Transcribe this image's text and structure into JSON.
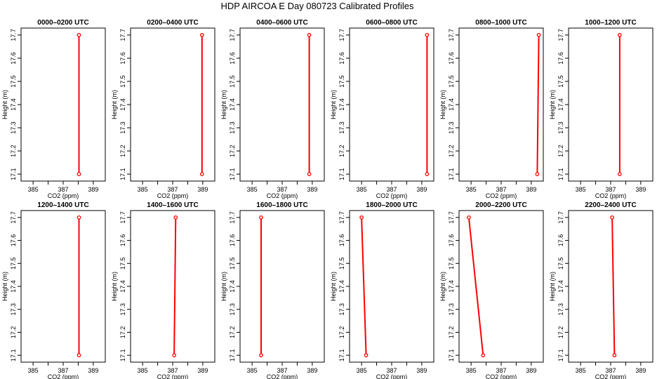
{
  "title": "HDP AIRCOA E  Day 080723  Calibrated Profiles",
  "chart_data": [
    {
      "type": "line",
      "title": "0000–0200 UTC",
      "xlabel": "CO2 (ppm)",
      "ylabel": "Height (m)",
      "xlim": [
        384.2,
        389.8
      ],
      "ylim": [
        17.07,
        17.73
      ],
      "xticks": [
        385,
        386,
        387,
        388,
        389
      ],
      "xtick_labels": [
        "385",
        "387",
        "389"
      ],
      "yticks": [
        17.1,
        17.2,
        17.3,
        17.4,
        17.5,
        17.6,
        17.7
      ],
      "ytick_labels": [
        "17.1",
        "17.2",
        "17.3",
        "17.4",
        "17.5",
        "17.6",
        "17.7"
      ],
      "series": [
        {
          "color": "#ff0000",
          "x": [
            388.05,
            388.05
          ],
          "y": [
            17.1,
            17.7
          ]
        }
      ]
    },
    {
      "type": "line",
      "title": "0200–0400 UTC",
      "xlabel": "CO2 (ppm)",
      "ylabel": "Height (m)",
      "xlim": [
        384.2,
        389.8
      ],
      "ylim": [
        17.07,
        17.73
      ],
      "xticks": [
        385,
        386,
        387,
        388,
        389
      ],
      "xtick_labels": [
        "385",
        "387",
        "389"
      ],
      "yticks": [
        17.1,
        17.2,
        17.3,
        17.4,
        17.5,
        17.6,
        17.7
      ],
      "ytick_labels": [
        "17.1",
        "17.2",
        "17.3",
        "17.4",
        "17.5",
        "17.6",
        "17.7"
      ],
      "series": [
        {
          "color": "#ff0000",
          "x": [
            388.95,
            388.95
          ],
          "y": [
            17.1,
            17.7
          ]
        }
      ]
    },
    {
      "type": "line",
      "title": "0400–0600 UTC",
      "xlabel": "CO2 (ppm)",
      "ylabel": "Height (m)",
      "xlim": [
        384.2,
        389.8
      ],
      "ylim": [
        17.07,
        17.73
      ],
      "xticks": [
        385,
        386,
        387,
        388,
        389
      ],
      "xtick_labels": [
        "385",
        "387",
        "389"
      ],
      "yticks": [
        17.1,
        17.2,
        17.3,
        17.4,
        17.5,
        17.6,
        17.7
      ],
      "ytick_labels": [
        "17.1",
        "17.2",
        "17.3",
        "17.4",
        "17.5",
        "17.6",
        "17.7"
      ],
      "series": [
        {
          "color": "#ff0000",
          "x": [
            388.8,
            388.8
          ],
          "y": [
            17.1,
            17.7
          ]
        }
      ]
    },
    {
      "type": "line",
      "title": "0600–0800 UTC",
      "xlabel": "CO2 (ppm)",
      "ylabel": "Height (m)",
      "xlim": [
        384.2,
        389.8
      ],
      "ylim": [
        17.07,
        17.73
      ],
      "xticks": [
        385,
        386,
        387,
        388,
        389
      ],
      "xtick_labels": [
        "385",
        "387",
        "389"
      ],
      "yticks": [
        17.1,
        17.2,
        17.3,
        17.4,
        17.5,
        17.6,
        17.7
      ],
      "ytick_labels": [
        "17.1",
        "17.2",
        "17.3",
        "17.4",
        "17.5",
        "17.6",
        "17.7"
      ],
      "series": [
        {
          "color": "#ff0000",
          "x": [
            389.35,
            389.35
          ],
          "y": [
            17.1,
            17.7
          ]
        }
      ]
    },
    {
      "type": "line",
      "title": "0800–1000 UTC",
      "xlabel": "CO2 (ppm)",
      "ylabel": "Height (m)",
      "xlim": [
        384.2,
        389.8
      ],
      "ylim": [
        17.07,
        17.73
      ],
      "xticks": [
        385,
        386,
        387,
        388,
        389
      ],
      "xtick_labels": [
        "385",
        "387",
        "389"
      ],
      "yticks": [
        17.1,
        17.2,
        17.3,
        17.4,
        17.5,
        17.6,
        17.7
      ],
      "ytick_labels": [
        "17.1",
        "17.2",
        "17.3",
        "17.4",
        "17.5",
        "17.6",
        "17.7"
      ],
      "series": [
        {
          "color": "#ff0000",
          "x": [
            389.4,
            389.5
          ],
          "y": [
            17.1,
            17.7
          ]
        }
      ]
    },
    {
      "type": "line",
      "title": "1000–1200 UTC",
      "xlabel": "CO2 (ppm)",
      "ylabel": "Height (m)",
      "xlim": [
        384.2,
        389.8
      ],
      "ylim": [
        17.07,
        17.73
      ],
      "xticks": [
        385,
        386,
        387,
        388,
        389
      ],
      "xtick_labels": [
        "385",
        "387",
        "389"
      ],
      "yticks": [
        17.1,
        17.2,
        17.3,
        17.4,
        17.5,
        17.6,
        17.7
      ],
      "ytick_labels": [
        "17.1",
        "17.2",
        "17.3",
        "17.4",
        "17.5",
        "17.6",
        "17.7"
      ],
      "series": [
        {
          "color": "#ff0000",
          "x": [
            387.6,
            387.6
          ],
          "y": [
            17.1,
            17.7
          ]
        }
      ]
    },
    {
      "type": "line",
      "title": "1200–1400 UTC",
      "xlabel": "CO2 (ppm)",
      "ylabel": "Height (m)",
      "xlim": [
        384.2,
        389.8
      ],
      "ylim": [
        17.07,
        17.73
      ],
      "xticks": [
        385,
        386,
        387,
        388,
        389
      ],
      "xtick_labels": [
        "385",
        "387",
        "389"
      ],
      "yticks": [
        17.1,
        17.2,
        17.3,
        17.4,
        17.5,
        17.6,
        17.7
      ],
      "ytick_labels": [
        "17.1",
        "17.2",
        "17.3",
        "17.4",
        "17.5",
        "17.6",
        "17.7"
      ],
      "series": [
        {
          "color": "#ff0000",
          "x": [
            388.05,
            388.05
          ],
          "y": [
            17.1,
            17.7
          ]
        }
      ]
    },
    {
      "type": "line",
      "title": "1400–1600 UTC",
      "xlabel": "CO2 (ppm)",
      "ylabel": "Height (m)",
      "xlim": [
        384.2,
        389.8
      ],
      "ylim": [
        17.07,
        17.73
      ],
      "xticks": [
        385,
        386,
        387,
        388,
        389
      ],
      "xtick_labels": [
        "385",
        "387",
        "389"
      ],
      "yticks": [
        17.1,
        17.2,
        17.3,
        17.4,
        17.5,
        17.6,
        17.7
      ],
      "ytick_labels": [
        "17.1",
        "17.2",
        "17.3",
        "17.4",
        "17.5",
        "17.6",
        "17.7"
      ],
      "series": [
        {
          "color": "#ff0000",
          "x": [
            387.1,
            387.2
          ],
          "y": [
            17.1,
            17.7
          ]
        }
      ]
    },
    {
      "type": "line",
      "title": "1600–1800 UTC",
      "xlabel": "CO2 (ppm)",
      "ylabel": "Height (m)",
      "xlim": [
        384.2,
        389.8
      ],
      "ylim": [
        17.07,
        17.73
      ],
      "xticks": [
        385,
        386,
        387,
        388,
        389
      ],
      "xtick_labels": [
        "385",
        "387",
        "389"
      ],
      "yticks": [
        17.1,
        17.2,
        17.3,
        17.4,
        17.5,
        17.6,
        17.7
      ],
      "ytick_labels": [
        "17.1",
        "17.2",
        "17.3",
        "17.4",
        "17.5",
        "17.6",
        "17.7"
      ],
      "series": [
        {
          "color": "#ff0000",
          "x": [
            385.6,
            385.6
          ],
          "y": [
            17.1,
            17.7
          ]
        }
      ]
    },
    {
      "type": "line",
      "title": "1800–2000 UTC",
      "xlabel": "CO2 (ppm)",
      "ylabel": "Height (m)",
      "xlim": [
        384.2,
        389.8
      ],
      "ylim": [
        17.07,
        17.73
      ],
      "xticks": [
        385,
        386,
        387,
        388,
        389
      ],
      "xtick_labels": [
        "385",
        "387",
        "389"
      ],
      "yticks": [
        17.1,
        17.2,
        17.3,
        17.4,
        17.5,
        17.6,
        17.7
      ],
      "ytick_labels": [
        "17.1",
        "17.2",
        "17.3",
        "17.4",
        "17.5",
        "17.6",
        "17.7"
      ],
      "series": [
        {
          "color": "#ff0000",
          "x": [
            385.3,
            385.0
          ],
          "y": [
            17.1,
            17.7
          ]
        }
      ]
    },
    {
      "type": "line",
      "title": "2000–2200 UTC",
      "xlabel": "CO2 (ppm)",
      "ylabel": "Height (m)",
      "xlim": [
        384.2,
        389.8
      ],
      "ylim": [
        17.07,
        17.73
      ],
      "xticks": [
        385,
        386,
        387,
        388,
        389
      ],
      "xtick_labels": [
        "385",
        "387",
        "389"
      ],
      "yticks": [
        17.1,
        17.2,
        17.3,
        17.4,
        17.5,
        17.6,
        17.7
      ],
      "ytick_labels": [
        "17.1",
        "17.2",
        "17.3",
        "17.4",
        "17.5",
        "17.6",
        "17.7"
      ],
      "series": [
        {
          "color": "#ff0000",
          "x": [
            385.8,
            384.85
          ],
          "y": [
            17.1,
            17.7
          ]
        }
      ]
    },
    {
      "type": "line",
      "title": "2200–2400 UTC",
      "xlabel": "CO2 (ppm)",
      "ylabel": "Height (m)",
      "xlim": [
        384.2,
        389.8
      ],
      "ylim": [
        17.07,
        17.73
      ],
      "xticks": [
        385,
        386,
        387,
        388,
        389
      ],
      "xtick_labels": [
        "385",
        "387",
        "389"
      ],
      "yticks": [
        17.1,
        17.2,
        17.3,
        17.4,
        17.5,
        17.6,
        17.7
      ],
      "ytick_labels": [
        "17.1",
        "17.2",
        "17.3",
        "17.4",
        "17.5",
        "17.6",
        "17.7"
      ],
      "series": [
        {
          "color": "#ff0000",
          "x": [
            387.25,
            387.1
          ],
          "y": [
            17.1,
            17.7
          ]
        }
      ]
    }
  ]
}
